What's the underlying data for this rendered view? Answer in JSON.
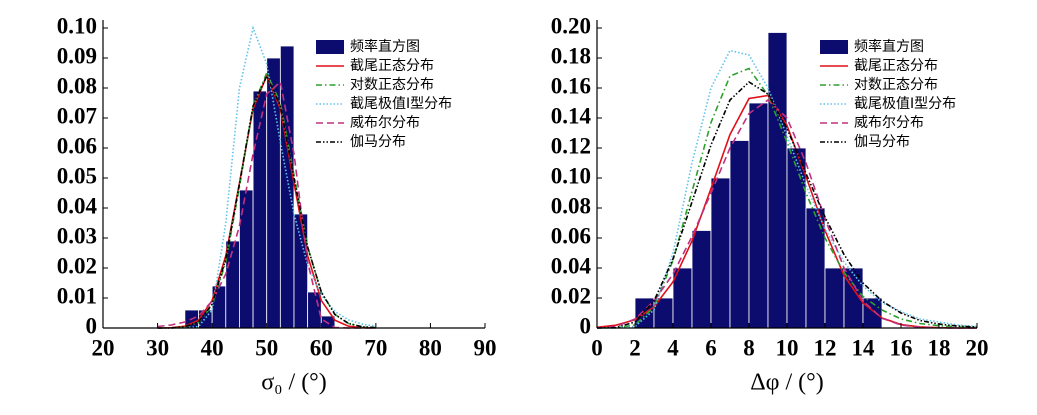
{
  "chart_data": [
    {
      "type": "histogram",
      "name": "频率直方图",
      "color": "#0c0c6e",
      "bins": [
        35,
        37.5,
        40,
        42.5,
        45,
        47.5,
        50,
        52.5,
        55,
        57.5,
        60,
        62.5
      ],
      "values": [
        0.006,
        0.006,
        0.014,
        0.029,
        0.046,
        0.079,
        0.09,
        0.094,
        0.038,
        0.012,
        0.004
      ],
      "x_label": "σ₀ / (°)",
      "xlim": [
        20,
        90
      ],
      "xticks": [
        20,
        30,
        40,
        50,
        60,
        70,
        80,
        90
      ],
      "ylim": [
        0,
        0.1
      ],
      "yticks": [
        0,
        0.01,
        0.02,
        0.03,
        0.04,
        0.05,
        0.06,
        0.07,
        0.08,
        0.09,
        {
          "value": 0.1,
          "label": "0.10"
        }
      ],
      "curve_x": [
        30,
        32.5,
        35,
        37.5,
        40,
        42.5,
        45,
        47.5,
        50,
        52.5,
        55,
        57.5,
        60,
        62.5,
        65,
        67.5,
        70
      ],
      "series": [
        {
          "name": "截尾正态分布",
          "color": "#e0101a",
          "style": "solid",
          "values": [
            0,
            0.0001,
            0.0006,
            0.0026,
            0.0092,
            0.0241,
            0.0483,
            0.0731,
            0.084,
            0.0731,
            0.0483,
            0.0241,
            0.0092,
            0.0026,
            0.0006,
            0.0001,
            0
          ]
        },
        {
          "name": "对数正态分布",
          "color": "#2ca02c",
          "style": "dashdot",
          "values": [
            0,
            0,
            0.0003,
            0.0018,
            0.0075,
            0.022,
            0.047,
            0.074,
            0.085,
            0.075,
            0.051,
            0.027,
            0.012,
            0.0045,
            0.0015,
            0.0004,
            0.0001
          ]
        },
        {
          "name": "截尾极值Ⅰ型分布",
          "color": "#5fc3ea",
          "style": "dotted",
          "values": [
            0,
            0,
            0,
            0.0005,
            0.006,
            0.035,
            0.08,
            0.1,
            0.088,
            0.062,
            0.038,
            0.021,
            0.011,
            0.0055,
            0.0027,
            0.0013,
            0.0006
          ]
        },
        {
          "name": "威布尔分布",
          "color": "#c0307f",
          "style": "dashed",
          "values": [
            0.0005,
            0.001,
            0.002,
            0.004,
            0.009,
            0.018,
            0.034,
            0.058,
            0.078,
            0.082,
            0.058,
            0.022,
            0.003,
            0.0002,
            0,
            0,
            0
          ]
        },
        {
          "name": "伽马分布",
          "color": "#000000",
          "style": "dashdotdot",
          "values": [
            0,
            0,
            0.0004,
            0.002,
            0.008,
            0.023,
            0.048,
            0.074,
            0.084,
            0.074,
            0.05,
            0.027,
            0.012,
            0.0045,
            0.0015,
            0.0004,
            0.0001
          ]
        }
      ]
    },
    {
      "type": "histogram",
      "name": "频率直方图",
      "color": "#0c0c6e",
      "bins": [
        2,
        3,
        4,
        5,
        6,
        7,
        8,
        9,
        10,
        11,
        12,
        13,
        14,
        15
      ],
      "values": [
        0.02,
        0.02,
        0.04,
        0.065,
        0.1,
        0.125,
        0.15,
        0.197,
        0.12,
        0.08,
        0.04,
        0.04,
        0.02
      ],
      "x_label": "Δφ / (°)",
      "xlim": [
        0,
        20
      ],
      "xticks": [
        0,
        2,
        4,
        6,
        8,
        10,
        12,
        14,
        16,
        18,
        20
      ],
      "ylim": [
        0,
        0.2
      ],
      "yticks": [
        0,
        0.02,
        0.04,
        0.06,
        0.08,
        {
          "value": 0.1,
          "label": "0.10"
        },
        0.12,
        0.14,
        0.16,
        0.18,
        {
          "value": 0.2,
          "label": "0.20"
        }
      ],
      "curve_x": [
        0,
        1,
        2,
        3,
        4,
        5,
        6,
        7,
        8,
        9,
        10,
        11,
        12,
        13,
        14,
        15,
        16,
        17,
        18,
        19,
        20
      ],
      "series": [
        {
          "name": "截尾正态分布",
          "color": "#e0101a",
          "style": "solid",
          "values": [
            0.0005,
            0.0019,
            0.0055,
            0.0141,
            0.0308,
            0.058,
            0.093,
            0.129,
            0.153,
            0.155,
            0.135,
            0.101,
            0.065,
            0.035,
            0.0167,
            0.0067,
            0.0023,
            0.0007,
            0.0002,
            0,
            0
          ]
        },
        {
          "name": "对数正态分布",
          "color": "#2ca02c",
          "style": "dashdot",
          "values": [
            0,
            0.0001,
            0.002,
            0.014,
            0.045,
            0.091,
            0.137,
            0.168,
            0.173,
            0.155,
            0.124,
            0.09,
            0.06,
            0.037,
            0.021,
            0.012,
            0.006,
            0.003,
            0.0015,
            0.0007,
            0.0003
          ]
        },
        {
          "name": "截尾极值Ⅰ型分布",
          "color": "#5fc3ea",
          "style": "dotted",
          "values": [
            0,
            0,
            0.001,
            0.012,
            0.05,
            0.11,
            0.16,
            0.185,
            0.182,
            0.16,
            0.128,
            0.095,
            0.066,
            0.044,
            0.028,
            0.017,
            0.011,
            0.006,
            0.004,
            0.002,
            0.001
          ]
        },
        {
          "name": "威布尔分布",
          "color": "#c0307f",
          "style": "dashed",
          "values": [
            0,
            0.001,
            0.006,
            0.018,
            0.036,
            0.061,
            0.09,
            0.12,
            0.143,
            0.152,
            0.14,
            0.11,
            0.073,
            0.04,
            0.018,
            0.0065,
            0.002,
            0.0005,
            0.0001,
            0,
            0
          ]
        },
        {
          "name": "伽马分布",
          "color": "#000000",
          "style": "dashdotdot",
          "values": [
            0,
            0.0003,
            0.004,
            0.018,
            0.046,
            0.084,
            0.122,
            0.152,
            0.164,
            0.156,
            0.133,
            0.103,
            0.074,
            0.049,
            0.03,
            0.018,
            0.01,
            0.005,
            0.0026,
            0.0013,
            0.0006
          ]
        }
      ]
    }
  ]
}
